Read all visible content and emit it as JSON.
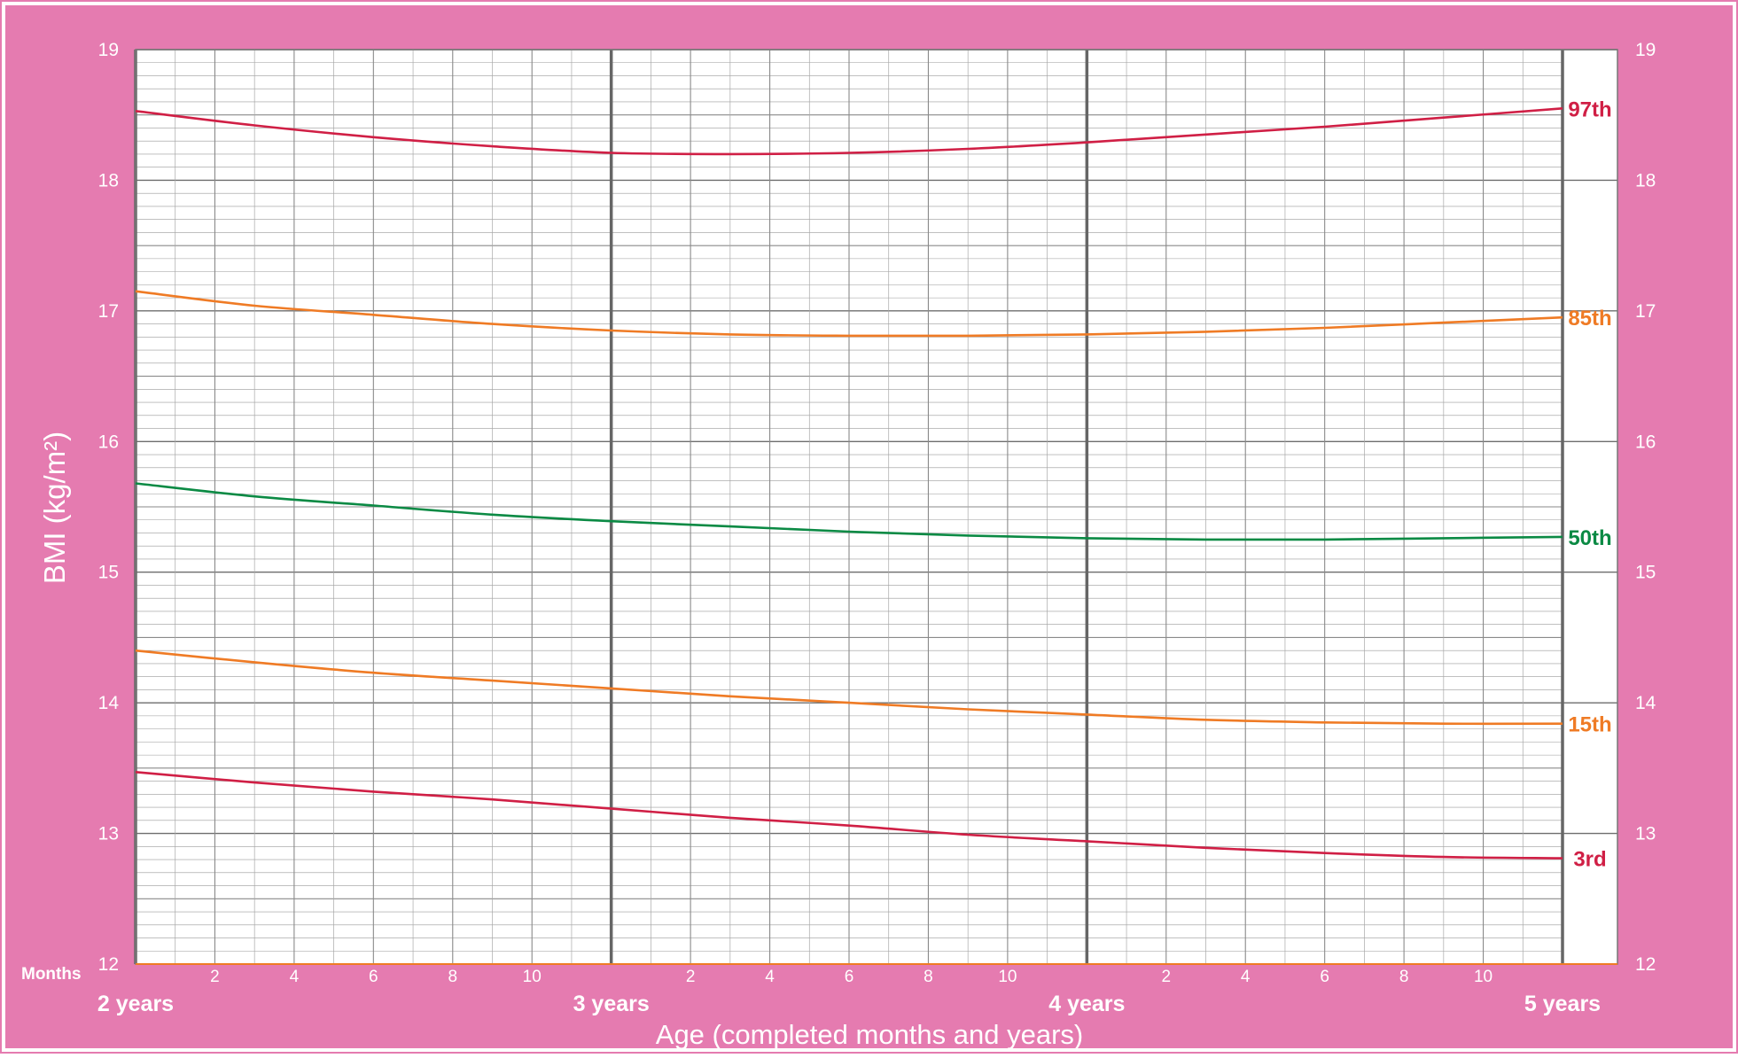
{
  "chart_data": {
    "type": "line",
    "ylabel": "BMI (kg/m²)",
    "xlabel": "Age (completed months and years)",
    "months_label": "Months",
    "x_unit": "months of age",
    "xlim": [
      24,
      60
    ],
    "ylim": [
      12,
      19
    ],
    "y_ticks": [
      12,
      13,
      14,
      15,
      16,
      17,
      18,
      19
    ],
    "year_ticks": [
      {
        "x": 24,
        "label": "2 years"
      },
      {
        "x": 36,
        "label": "3 years"
      },
      {
        "x": 48,
        "label": "4 years"
      },
      {
        "x": 60,
        "label": "5 years"
      }
    ],
    "month_ticks": [
      {
        "x": 26,
        "label": "2"
      },
      {
        "x": 28,
        "label": "4"
      },
      {
        "x": 30,
        "label": "6"
      },
      {
        "x": 32,
        "label": "8"
      },
      {
        "x": 34,
        "label": "10"
      },
      {
        "x": 38,
        "label": "2"
      },
      {
        "x": 40,
        "label": "4"
      },
      {
        "x": 42,
        "label": "6"
      },
      {
        "x": 44,
        "label": "8"
      },
      {
        "x": 46,
        "label": "10"
      },
      {
        "x": 50,
        "label": "2"
      },
      {
        "x": 52,
        "label": "4"
      },
      {
        "x": 54,
        "label": "6"
      },
      {
        "x": 56,
        "label": "8"
      },
      {
        "x": 58,
        "label": "10"
      }
    ],
    "x": [
      24,
      27,
      30,
      33,
      36,
      39,
      42,
      45,
      48,
      51,
      54,
      57,
      60
    ],
    "series": [
      {
        "name": "97th",
        "color": "#d01f45",
        "values": [
          18.53,
          18.42,
          18.33,
          18.26,
          18.21,
          18.2,
          18.21,
          18.24,
          18.29,
          18.35,
          18.41,
          18.48,
          18.55
        ]
      },
      {
        "name": "85th",
        "color": "#ef7b25",
        "values": [
          17.15,
          17.04,
          16.97,
          16.9,
          16.85,
          16.82,
          16.81,
          16.81,
          16.82,
          16.84,
          16.87,
          16.91,
          16.95
        ]
      },
      {
        "name": "50th",
        "color": "#0b8a44",
        "values": [
          15.68,
          15.58,
          15.51,
          15.44,
          15.39,
          15.35,
          15.31,
          15.28,
          15.26,
          15.25,
          15.25,
          15.26,
          15.27
        ]
      },
      {
        "name": "15th",
        "color": "#ef7b25",
        "values": [
          14.4,
          14.31,
          14.23,
          14.17,
          14.11,
          14.05,
          14.0,
          13.95,
          13.91,
          13.87,
          13.85,
          13.84,
          13.84
        ]
      },
      {
        "name": "3rd",
        "color": "#d01f45",
        "values": [
          13.47,
          13.39,
          13.32,
          13.26,
          13.19,
          13.12,
          13.06,
          12.99,
          12.94,
          12.89,
          12.85,
          12.82,
          12.81
        ]
      }
    ]
  },
  "colors": {
    "background": "#e57bb0",
    "grid_minor": "#9a9a9a",
    "grid_major": "#6e6e6e",
    "axis_text": "#ffffff"
  }
}
